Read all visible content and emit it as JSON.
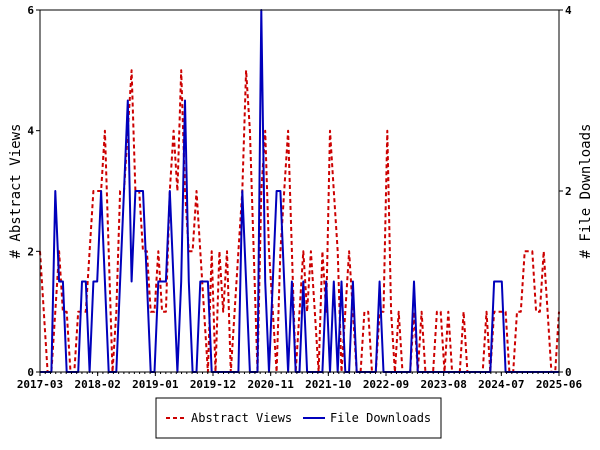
{
  "chart_data": {
    "type": "line",
    "title": "",
    "xlabel": "",
    "ylabel": "# Abstract Views",
    "y2label": "# File Downloads",
    "x_ticks": [
      "2017-03",
      "2018-02",
      "2019-01",
      "2019-12",
      "2020-11",
      "2021-10",
      "2022-09",
      "2023-08",
      "2024-07",
      "2025-06"
    ],
    "ylim": [
      0,
      6
    ],
    "y_ticks": [
      "0",
      "2",
      "4",
      "6"
    ],
    "y2lim": [
      0,
      4
    ],
    "y2_ticks": [
      "0",
      "2",
      "4"
    ],
    "legend_position": "bottom",
    "grid": false,
    "series": [
      {
        "name": "Abstract Views",
        "axis": "left",
        "color": "#cc0000",
        "dash": "dashed",
        "values": [
          2,
          1,
          0,
          0,
          1,
          2,
          1,
          1,
          0,
          0,
          1,
          1,
          1,
          2,
          3,
          3,
          3,
          4,
          2,
          0,
          1,
          3,
          3,
          4,
          5,
          3,
          3,
          2,
          2,
          1,
          1,
          2,
          1,
          1,
          3,
          4,
          3,
          5,
          3,
          2,
          2,
          3,
          2,
          1,
          0,
          2,
          0,
          2,
          1,
          2,
          0,
          1,
          2,
          3,
          5,
          4,
          2,
          0,
          3,
          4,
          2,
          1,
          0,
          2,
          3,
          4,
          2,
          0,
          1,
          2,
          1,
          2,
          1,
          0,
          2,
          1,
          4,
          3,
          2,
          0,
          1,
          2,
          1,
          0,
          0,
          1,
          1,
          0,
          0,
          1,
          1,
          4,
          1,
          0,
          1,
          0,
          0,
          0,
          1,
          0,
          1,
          0,
          0,
          0,
          1,
          1,
          0,
          1,
          0,
          0,
          0,
          1,
          0,
          0,
          0,
          0,
          0,
          1,
          0,
          1,
          1,
          1,
          1,
          0,
          0,
          1,
          1,
          2,
          2,
          2,
          1,
          1,
          2,
          1,
          0,
          0,
          1
        ]
      },
      {
        "name": "File Downloads",
        "axis": "right",
        "color": "#0000bb",
        "dash": "solid",
        "values": [
          0,
          0,
          0,
          0,
          2,
          1,
          1,
          0,
          0,
          0,
          0,
          1,
          1,
          0,
          1,
          1,
          2,
          1,
          0,
          0,
          0,
          1,
          2,
          3,
          1,
          2,
          2,
          2,
          1,
          0,
          0,
          1,
          1,
          1,
          2,
          1,
          0,
          1,
          3,
          1,
          0,
          0,
          1,
          1,
          1,
          0,
          0,
          0,
          0,
          0,
          0,
          0,
          0,
          2,
          1,
          0,
          0,
          0,
          4,
          1,
          0,
          1,
          2,
          2,
          1,
          0,
          1,
          0,
          0,
          1,
          0,
          0,
          0,
          0,
          0,
          1,
          0,
          1,
          0,
          1,
          0,
          0,
          1,
          0,
          0,
          0,
          0,
          0,
          0,
          1,
          0,
          0,
          0,
          0,
          0,
          0,
          0,
          0,
          1,
          0,
          0,
          0,
          0,
          0,
          0,
          0,
          0,
          0,
          0,
          0,
          0,
          0,
          0,
          0,
          0,
          0,
          0,
          0,
          0,
          1,
          1,
          1,
          0,
          0,
          0,
          0,
          0,
          0,
          0,
          0,
          0,
          0,
          0,
          0,
          0,
          0,
          0
        ]
      }
    ]
  }
}
